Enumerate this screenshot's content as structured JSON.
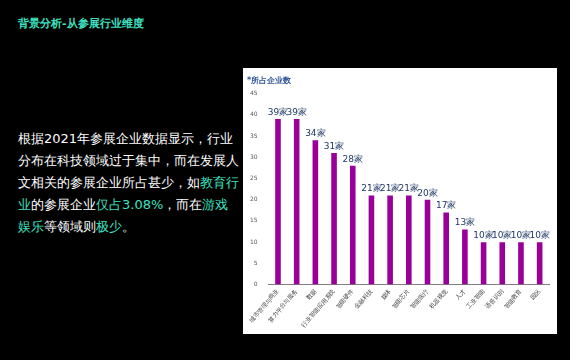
{
  "page": {
    "heading": "背景分析-从参展行业维度",
    "paragraph": [
      {
        "text": "根据2021年参展企业数据显示，行业分布在科技领域过于集中，而在发展人文相关的参展企业所占甚少，如",
        "highlight": false
      },
      {
        "text": "教育行业",
        "highlight": true
      },
      {
        "text": "的参展企业",
        "highlight": false
      },
      {
        "text": "仅占3.08%",
        "highlight": true
      },
      {
        "text": "，而在",
        "highlight": false
      },
      {
        "text": "游戏娱乐",
        "highlight": true
      },
      {
        "text": "等领域则",
        "highlight": false
      },
      {
        "text": "极少",
        "highlight": true
      },
      {
        "text": "。",
        "highlight": false
      }
    ]
  },
  "chart_data": {
    "type": "bar",
    "title": "*所占企业数",
    "categories": [
      "城市管理与商业",
      "算力平台与服务",
      "数据",
      "行业智能应用系统",
      "智能硬件",
      "金融科技",
      "媒体",
      "智能芯片",
      "智能医疗",
      "机器视觉",
      "人才",
      "工业智能",
      "语音识别",
      "智能教育",
      "园区"
    ],
    "values": [
      39,
      39,
      34,
      31,
      28,
      21,
      21,
      21,
      20,
      17,
      13,
      10,
      10,
      10,
      10
    ],
    "value_labels": [
      "39家",
      "39家",
      "34家",
      "31家",
      "28家",
      "21家",
      "21家",
      "21家",
      "20家",
      "17家",
      "13家",
      "10家",
      "10家",
      "10家",
      "10家"
    ],
    "data_labels": true,
    "color": "#990099",
    "ylim": [
      0,
      45
    ],
    "yticks": [
      0,
      5,
      10,
      15,
      20,
      25,
      30,
      35,
      40,
      45
    ],
    "grid": false
  }
}
